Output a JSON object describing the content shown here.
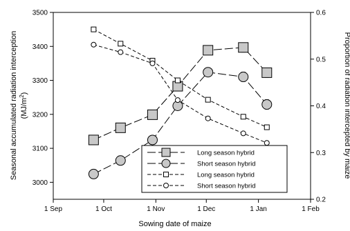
{
  "chart_data": {
    "type": "line",
    "title": "",
    "xlabel": "Sowing date of maize",
    "ylabel_left_line1": "Seasonal accumulated radiation interception",
    "ylabel_left_line2": "(MJ/m",
    "ylabel_left_sup": "2",
    "ylabel_left_close": ")",
    "ylabel_right": "Proportion of radiation intercepted by maize",
    "x_ticks": [
      {
        "label": "1 Sep",
        "date": "2000-09-01"
      },
      {
        "label": "1 Oct",
        "date": "2000-10-01"
      },
      {
        "label": "1 Nov",
        "date": "2000-11-01"
      },
      {
        "label": "1 Dec",
        "date": "2000-12-01"
      },
      {
        "label": "1 Jan",
        "date": "2001-01-01"
      },
      {
        "label": "1 Feb",
        "date": "2001-02-01"
      }
    ],
    "xlim": [
      "2000-09-01",
      "2001-02-01"
    ],
    "y_left": {
      "min": 2950,
      "max": 3500,
      "ticks": [
        3000,
        3100,
        3200,
        3300,
        3400,
        3500
      ]
    },
    "y_right": {
      "min": 0.2,
      "max": 0.6,
      "ticks": [
        0.2,
        0.3,
        0.4,
        0.5,
        0.6
      ]
    },
    "x": [
      "2000-09-25",
      "2000-10-11",
      "2000-10-30",
      "2000-11-14",
      "2000-12-02",
      "2000-12-23",
      "2001-01-06"
    ],
    "series": [
      {
        "name": "Long season hybrid",
        "axis": "right",
        "marker": "square",
        "filled": true,
        "dash": "long",
        "values": [
          0.327,
          0.353,
          0.381,
          0.442,
          0.519,
          0.525,
          0.471
        ],
        "err": [
          0.008,
          0.008,
          0.008,
          0.008,
          0.008,
          0.01,
          0.01
        ]
      },
      {
        "name": "Short season hybrid",
        "axis": "right",
        "marker": "circle",
        "filled": true,
        "dash": "long",
        "values": [
          0.254,
          0.283,
          0.327,
          0.4,
          0.472,
          0.462,
          0.403
        ],
        "err": [
          0.008,
          0.008,
          0.008,
          0.008,
          0.008,
          0.01,
          0.01
        ]
      },
      {
        "name": "Long season hybrid",
        "axis": "left",
        "marker": "square",
        "filled": false,
        "dash": "short",
        "values": [
          3450,
          3408,
          3358,
          3300,
          3243,
          3193,
          3162
        ]
      },
      {
        "name": "Short season hybrid",
        "axis": "left",
        "marker": "circle",
        "filled": false,
        "dash": "short",
        "values": [
          3405,
          3383,
          3350,
          3242,
          3188,
          3144,
          3116
        ]
      }
    ],
    "legend_position": "bottom-right",
    "grid": false
  }
}
